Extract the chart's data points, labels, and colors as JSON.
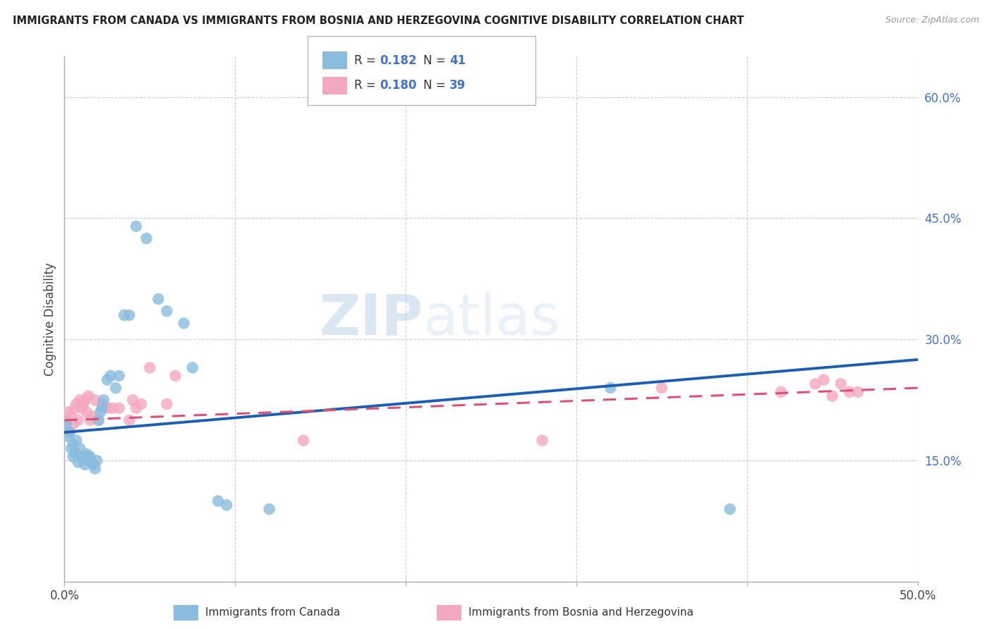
{
  "title": "IMMIGRANTS FROM CANADA VS IMMIGRANTS FROM BOSNIA AND HERZEGOVINA COGNITIVE DISABILITY CORRELATION CHART",
  "source": "Source: ZipAtlas.com",
  "ylabel": "Cognitive Disability",
  "xlim": [
    0.0,
    0.5
  ],
  "ylim": [
    0.0,
    0.65
  ],
  "x_ticks": [
    0.0,
    0.1,
    0.2,
    0.3,
    0.4,
    0.5
  ],
  "x_tick_labels": [
    "0.0%",
    "",
    "",
    "",
    "",
    "50.0%"
  ],
  "y_ticks_right": [
    0.15,
    0.3,
    0.45,
    0.6
  ],
  "y_tick_labels_right": [
    "15.0%",
    "30.0%",
    "45.0%",
    "60.0%"
  ],
  "legend_label1": "Immigrants from Canada",
  "legend_label2": "Immigrants from Bosnia and Herzegovina",
  "color_canada": "#89bcde",
  "color_bosnia": "#f4a8bf",
  "color_text_blue": "#4472c4",
  "background_color": "#ffffff",
  "grid_color": "#cccccc",
  "watermark": "ZIPatlas",
  "canada_line_start_y": 0.185,
  "canada_line_end_y": 0.275,
  "bosnia_line_start_y": 0.2,
  "bosnia_line_end_y": 0.24,
  "canada_scatter_x": [
    0.001,
    0.002,
    0.003,
    0.004,
    0.005,
    0.005,
    0.006,
    0.007,
    0.008,
    0.009,
    0.01,
    0.011,
    0.012,
    0.013,
    0.014,
    0.015,
    0.016,
    0.017,
    0.018,
    0.019,
    0.02,
    0.021,
    0.022,
    0.023,
    0.025,
    0.027,
    0.03,
    0.032,
    0.035,
    0.038,
    0.042,
    0.048,
    0.055,
    0.06,
    0.07,
    0.075,
    0.09,
    0.095,
    0.12,
    0.32,
    0.39
  ],
  "canada_scatter_y": [
    0.195,
    0.18,
    0.185,
    0.165,
    0.17,
    0.155,
    0.16,
    0.175,
    0.148,
    0.165,
    0.155,
    0.15,
    0.145,
    0.158,
    0.155,
    0.155,
    0.148,
    0.145,
    0.14,
    0.15,
    0.2,
    0.21,
    0.215,
    0.225,
    0.25,
    0.255,
    0.24,
    0.255,
    0.33,
    0.33,
    0.44,
    0.425,
    0.35,
    0.335,
    0.32,
    0.265,
    0.1,
    0.095,
    0.09,
    0.24,
    0.09
  ],
  "bosnia_scatter_x": [
    0.001,
    0.002,
    0.003,
    0.004,
    0.005,
    0.006,
    0.007,
    0.008,
    0.009,
    0.01,
    0.011,
    0.012,
    0.013,
    0.014,
    0.015,
    0.016,
    0.018,
    0.02,
    0.022,
    0.025,
    0.028,
    0.032,
    0.038,
    0.04,
    0.042,
    0.045,
    0.05,
    0.06,
    0.065,
    0.14,
    0.28,
    0.35,
    0.42,
    0.44,
    0.445,
    0.45,
    0.455,
    0.46,
    0.465
  ],
  "bosnia_scatter_y": [
    0.2,
    0.21,
    0.185,
    0.205,
    0.195,
    0.215,
    0.22,
    0.2,
    0.225,
    0.215,
    0.22,
    0.225,
    0.21,
    0.23,
    0.2,
    0.205,
    0.225,
    0.2,
    0.22,
    0.215,
    0.215,
    0.215,
    0.2,
    0.225,
    0.215,
    0.22,
    0.265,
    0.22,
    0.255,
    0.175,
    0.175,
    0.24,
    0.235,
    0.245,
    0.25,
    0.23,
    0.245,
    0.235,
    0.235
  ]
}
